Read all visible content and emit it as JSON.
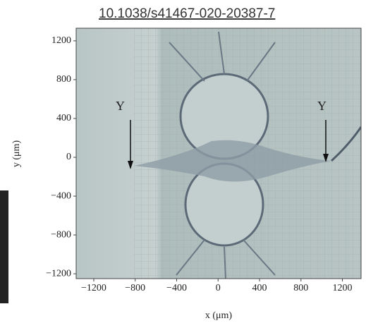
{
  "source": "10.1038/s41467-020-20387-7",
  "chart_data": {
    "type": "image",
    "xlabel": "x (μm)",
    "ylabel": "y (μm)",
    "xlim": [
      -1370,
      1380
    ],
    "ylim": [
      -1250,
      1330
    ],
    "xticks": [
      {
        "value": -1200,
        "label": "−1200"
      },
      {
        "value": -800,
        "label": "−800"
      },
      {
        "value": -400,
        "label": "−400"
      },
      0,
      400,
      800,
      1200
    ],
    "yticks": [
      1200,
      800,
      400,
      0,
      {
        "value": -400,
        "label": "−400"
      },
      {
        "value": -800,
        "label": "−800"
      },
      {
        "value": -1200,
        "label": "−1200"
      }
    ],
    "annotations": [
      "Y",
      "Y"
    ]
  }
}
